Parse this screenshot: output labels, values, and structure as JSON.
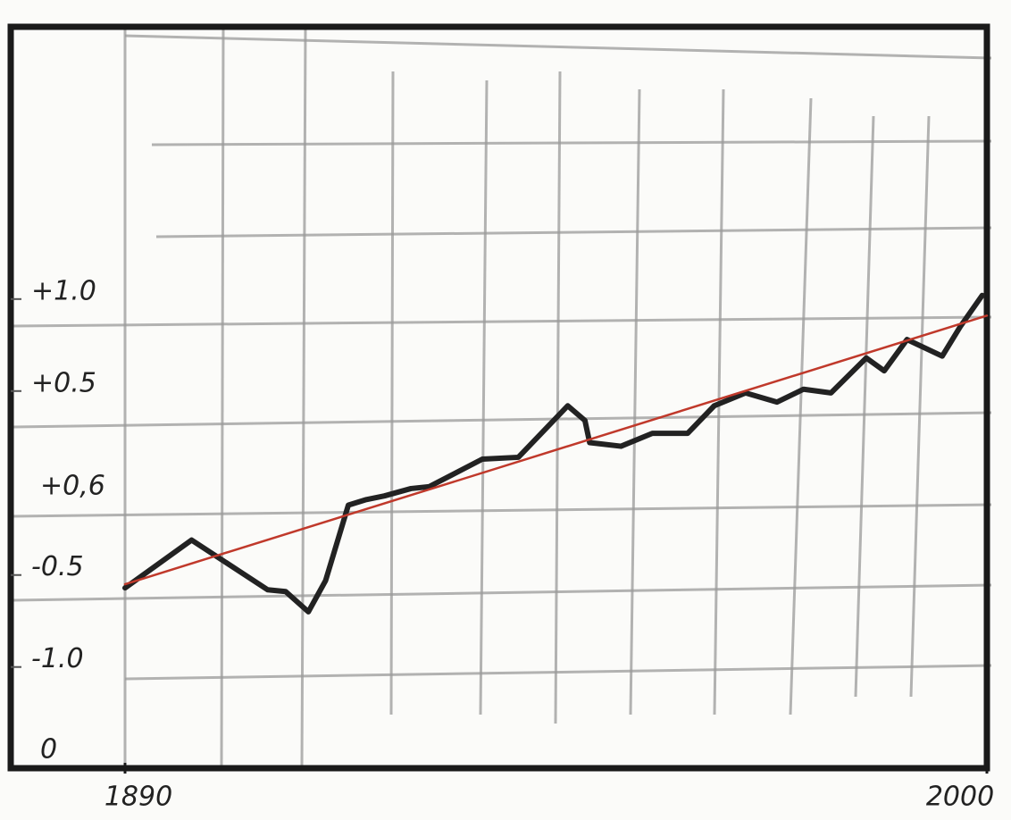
{
  "chart_data": {
    "type": "line",
    "xlim": [
      1890,
      2000
    ],
    "xticks": [
      1890,
      2000
    ],
    "ylim": [
      -1.55,
      2.48
    ],
    "yticks": [
      {
        "value": 1.0,
        "label": "+1.0"
      },
      {
        "value": 0.5,
        "label": "+0.5"
      },
      {
        "value": -0.5,
        "label": "-0.5"
      },
      {
        "value": -1.0,
        "label": "-1.0"
      }
    ],
    "annotations": [
      "+0,6",
      "0"
    ],
    "series": [
      {
        "color": "#222222",
        "x": [
          1890,
          1898.5,
          1908.2,
          1910.5,
          1913.4,
          1915.6,
          1918.5,
          1920.8,
          1923.1,
          1926.5,
          1928.8,
          1935.6,
          1940.2,
          1946.5,
          1948.7,
          1949.3,
          1953.3,
          1957.3,
          1961.8,
          1965.2,
          1969.2,
          1973.2,
          1976.6,
          1980.1,
          1984.6,
          1986.9,
          1989.8,
          1994.3,
          1996.6,
          1999.4
        ],
        "values": [
          -0.57,
          -0.31,
          -0.58,
          -0.59,
          -0.7,
          -0.53,
          -0.12,
          -0.09,
          -0.07,
          -0.03,
          -0.02,
          0.13,
          0.14,
          0.42,
          0.34,
          0.22,
          0.2,
          0.27,
          0.27,
          0.42,
          0.49,
          0.44,
          0.51,
          0.49,
          0.68,
          0.61,
          0.78,
          0.69,
          0.85,
          1.02
        ]
      },
      {
        "color": "#c0392b",
        "x": [
          1890,
          2000
        ],
        "values": [
          -0.55,
          0.91
        ]
      }
    ]
  }
}
